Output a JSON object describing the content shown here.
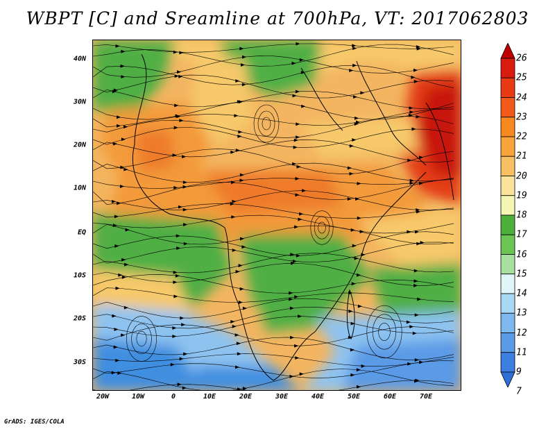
{
  "title": "WBPT [C] and Sreamline at 700hPa, VT: 2017062803",
  "credit": "GrADS: IGES/COLA",
  "lat_labels": [
    "40N",
    "30N",
    "20N",
    "10N",
    "EQ",
    "10S",
    "20S",
    "30S"
  ],
  "lon_labels": [
    "20W",
    "10W",
    "0",
    "10E",
    "20E",
    "30E",
    "40E",
    "50E",
    "60E",
    "70E"
  ],
  "colorbar": {
    "labels": [
      "26",
      "25",
      "24",
      "23",
      "22",
      "21",
      "20",
      "19",
      "18",
      "17",
      "16",
      "15",
      "14",
      "13",
      "12",
      "11",
      "9",
      "7"
    ],
    "colors": [
      "#c00000",
      "#d81b0e",
      "#e83a13",
      "#f2591a",
      "#f68a1f",
      "#f9a43a",
      "#f7c163",
      "#fbe29a",
      "#f5f5b4",
      "#4caf3b",
      "#6cc455",
      "#a8e0a0",
      "#e0f5f8",
      "#a8d8f3",
      "#7db8ee",
      "#5a9ae6",
      "#3d7fe0",
      "#2f6fd8"
    ]
  },
  "map_colors": {
    "cold": "#3f8ee0",
    "cool": "#8ec3f0",
    "mild": "#4faf44",
    "warm": "#f7c96a",
    "hot": "#f39a3a",
    "very_hot": "#e33d14"
  }
}
